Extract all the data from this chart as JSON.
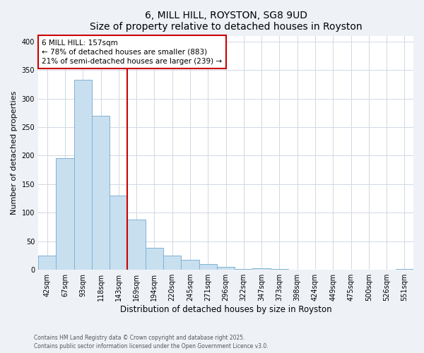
{
  "title": "6, MILL HILL, ROYSTON, SG8 9UD",
  "subtitle": "Size of property relative to detached houses in Royston",
  "xlabel": "Distribution of detached houses by size in Royston",
  "ylabel": "Number of detached properties",
  "bar_color": "#c8dff0",
  "bar_edge_color": "#7fb3d3",
  "categories": [
    "42sqm",
    "67sqm",
    "93sqm",
    "118sqm",
    "143sqm",
    "169sqm",
    "194sqm",
    "220sqm",
    "245sqm",
    "271sqm",
    "296sqm",
    "322sqm",
    "347sqm",
    "373sqm",
    "398sqm",
    "424sqm",
    "449sqm",
    "475sqm",
    "500sqm",
    "526sqm",
    "551sqm"
  ],
  "values": [
    25,
    195,
    333,
    270,
    130,
    88,
    38,
    25,
    17,
    10,
    5,
    2,
    3,
    1,
    0,
    0,
    0,
    0,
    0,
    0,
    2
  ],
  "vline_color": "#cc0000",
  "annotation_title": "6 MILL HILL: 157sqm",
  "annotation_line1": "← 78% of detached houses are smaller (883)",
  "annotation_line2": "21% of semi-detached houses are larger (239) →",
  "ylim": [
    0,
    410
  ],
  "yticks": [
    0,
    50,
    100,
    150,
    200,
    250,
    300,
    350,
    400
  ],
  "footer_line1": "Contains HM Land Registry data © Crown copyright and database right 2025.",
  "footer_line2": "Contains public sector information licensed under the Open Government Licence v3.0.",
  "background_color": "#eef2f7",
  "plot_background": "#ffffff",
  "grid_color": "#d0d8e4"
}
